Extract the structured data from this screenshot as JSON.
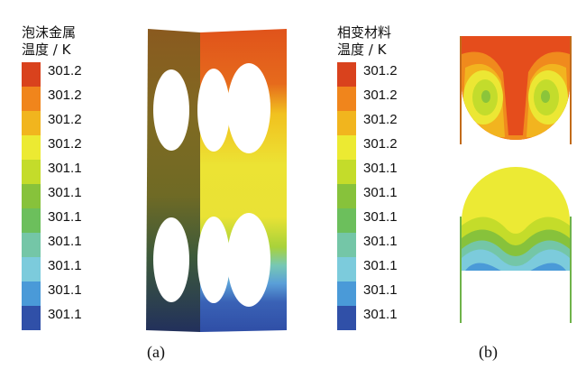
{
  "legend_a": {
    "title_line1": "泡沫金属",
    "title_line2": "温度 / K",
    "ticks": [
      "301.2",
      "301.2",
      "301.2",
      "301.2",
      "301.1",
      "301.1",
      "301.1",
      "301.1",
      "301.1",
      "301.1",
      "301.1"
    ]
  },
  "legend_b": {
    "title_line1": "相变材料",
    "title_line2": "温度 / K",
    "ticks": [
      "301.2",
      "301.2",
      "301.2",
      "301.2",
      "301.1",
      "301.1",
      "301.1",
      "301.1",
      "301.1",
      "301.1",
      "301.1"
    ]
  },
  "colormap": [
    "#d9421d",
    "#f0851c",
    "#f1b51e",
    "#ecea32",
    "#c4dc2a",
    "#87c23b",
    "#6cbf5c",
    "#74c6a7",
    "#7ccbdc",
    "#4a9ad8",
    "#3050a8"
  ],
  "captions": {
    "a": "(a)",
    "b": "(b)"
  }
}
